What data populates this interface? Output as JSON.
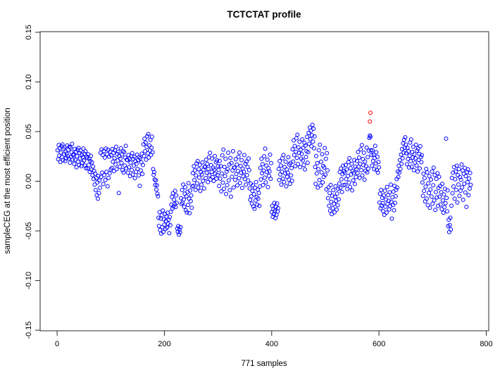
{
  "title": "TCTCTAT profile",
  "x_axis": {
    "label": "771 samples",
    "tick_values": [
      0,
      200,
      400,
      600,
      800
    ],
    "tick_labels": [
      "0",
      "200",
      "400",
      "600",
      "800"
    ]
  },
  "y_axis": {
    "label": "sampleCEG at the most efficient position",
    "tick_values": [
      0.15,
      0.1,
      0.05,
      0.0,
      -0.05,
      -0.1,
      -0.15
    ],
    "tick_labels": [
      "0.15",
      "0.10",
      "0.05",
      "0.00",
      "-0.05",
      "-0.10",
      "-0.15"
    ]
  },
  "colors": {
    "points": "#0000FF",
    "outliers": "#FF0000",
    "axis": "#2a2a2a",
    "background": "#FFFFFF"
  },
  "chart_data": {
    "type": "scatter",
    "title": "TCTCTAT profile",
    "xlabel": "771 samples",
    "ylabel": "sampleCEG at the most efficient position",
    "xlim": [
      -31.6,
      804.6
    ],
    "ylim": [
      -0.1506,
      0.1506
    ],
    "grid": false,
    "legend": "none",
    "n_samples": 771,
    "marker": "open-circle",
    "series_note": "one sample per x index, x = 1..771",
    "series": [
      {
        "name": "sample profile",
        "color": "#0000FF",
        "x_start": 1,
        "values": [
          0.0312,
          0.0221,
          0.0364,
          0.0258,
          0.0333,
          0.0194,
          0.0289,
          0.0352,
          0.0243,
          0.0371,
          0.0212,
          0.0326,
          0.0269,
          0.0341,
          0.0203,
          0.0297,
          0.0232,
          0.0278,
          0.0359,
          0.0251,
          0.0317,
          0.0228,
          0.0347,
          0.0186,
          0.0338,
          0.0246,
          0.0291,
          0.0376,
          0.0218,
          0.0262,
          0.0273,
          0.0176,
          0.0325,
          0.0217,
          0.0295,
          0.0141,
          0.0251,
          0.0318,
          0.0196,
          0.0336,
          0.0163,
          0.0284,
          0.0229,
          0.0308,
          0.0152,
          0.0266,
          0.0187,
          0.0242,
          0.0329,
          0.0206,
          0.0277,
          0.0158,
          0.0301,
          0.0131,
          0.0249,
          0.0234,
          0.0128,
          0.0271,
          0.0162,
          0.0226,
          0.0094,
          0.0203,
          0.0255,
          0.0117,
          0.0189,
          0.0061,
          0.0148,
          0.0022,
          0.0105,
          -0.0034,
          0.0076,
          -0.0089,
          0.0031,
          -0.0142,
          -0.0012,
          -0.0176,
          0.0054,
          -0.0118,
          0.0008,
          -0.0065,
          0.0286,
          0.0043,
          0.0321,
          0.0087,
          0.0264,
          -0.0028,
          0.0305,
          0.0061,
          0.0238,
          0.0012,
          0.0329,
          0.0095,
          0.0272,
          -0.0051,
          0.0316,
          0.0034,
          0.0247,
          0.0079,
          0.0298,
          0.0118,
          0.0261,
          0.0134,
          0.0324,
          0.0196,
          0.0285,
          0.0102,
          0.0233,
          0.0312,
          0.0168,
          0.0347,
          0.0121,
          0.0276,
          0.0209,
          0.0298,
          -0.0118,
          0.0253,
          0.0146,
          0.0227,
          0.0331,
          0.0184,
          0.0269,
          0.0112,
          0.0304,
          0.0088,
          0.0292,
          0.0157,
          0.0238,
          0.0356,
          0.0129,
          0.0216,
          0.0213,
          0.0086,
          0.0264,
          0.0141,
          0.0229,
          0.0052,
          0.0187,
          0.0251,
          0.0113,
          0.0283,
          0.0067,
          0.0224,
          0.0158,
          0.0246,
          0.0031,
          0.0202,
          0.0095,
          0.0176,
          0.0268,
          0.0124,
          0.0215,
          0.0058,
          0.0243,
          -0.0047,
          0.0231,
          0.0108,
          0.0189,
          0.0277,
          0.0073,
          0.0164,
          0.0372,
          0.0254,
          0.0428,
          0.0301,
          0.0389,
          0.0217,
          0.0346,
          0.0453,
          0.0282,
          0.0475,
          0.0238,
          0.0361,
          0.0309,
          0.0417,
          0.0264,
          0.0338,
          0.0448,
          0.0291,
          0.0121,
          0.0064,
          0.0092,
          0.0017,
          -0.0038,
          0.0009,
          -0.0084,
          -0.0041,
          -0.0126,
          -0.0152,
          -0.0368,
          -0.0451,
          -0.0312,
          -0.0492,
          -0.0376,
          -0.0527,
          -0.0341,
          -0.0463,
          -0.0295,
          -0.0512,
          -0.0384,
          -0.0437,
          -0.0329,
          -0.0481,
          -0.0402,
          -0.0356,
          -0.0468,
          -0.0317,
          -0.0429,
          -0.0387,
          -0.0524,
          -0.0361,
          -0.0443,
          -0.0308,
          -0.0236,
          -0.0158,
          -0.0274,
          -0.0121,
          -0.0253,
          -0.0186,
          -0.0229,
          -0.0097,
          -0.0261,
          -0.0143,
          -0.0218,
          -0.0476,
          -0.0509,
          -0.0452,
          -0.0538,
          -0.0487,
          -0.0515,
          -0.0463,
          -0.0172,
          -0.0228,
          -0.0088,
          -0.0216,
          -0.0034,
          -0.0184,
          -0.0257,
          -0.0126,
          -0.0061,
          -0.0293,
          -0.0152,
          -0.0315,
          -0.0107,
          -0.0238,
          -0.0019,
          -0.0176,
          -0.0322,
          -0.0094,
          -0.0201,
          -0.0143,
          -0.0267,
          -0.0052,
          0.0082,
          -0.0046,
          0.0151,
          0.0013,
          0.0109,
          -0.0087,
          0.0058,
          0.0178,
          -0.0021,
          0.0203,
          -0.0064,
          0.0121,
          0.0037,
          0.0164,
          -0.0098,
          0.0091,
          -0.0035,
          0.0068,
          0.0189,
          0.0004,
          0.0116,
          -0.0072,
          0.0143,
          0.0148,
          0.0032,
          0.0217,
          0.0086,
          0.0174,
          -0.0009,
          0.0123,
          0.0241,
          0.0058,
          0.0286,
          0.0017,
          0.0162,
          0.0094,
          0.0228,
          0.0041,
          0.0137,
          0.0003,
          0.0118,
          0.0254,
          0.0076,
          0.0191,
          0.0025,
          0.0209,
          0.0063,
          0.0152,
          0.0114,
          -0.0048,
          0.0205,
          0.0026,
          0.0152,
          -0.0102,
          0.0078,
          0.0261,
          -0.0014,
          0.0318,
          -0.0076,
          0.0143,
          0.0052,
          0.0226,
          -0.0128,
          0.0097,
          -0.0039,
          0.0121,
          0.0287,
          0.0008,
          0.0169,
          -0.0091,
          0.0234,
          -0.0156,
          0.0183,
          0.0044,
          0.0109,
          0.0302,
          -0.0063,
          0.0137,
          0.0138,
          0.0014,
          0.0221,
          0.0072,
          0.0167,
          -0.0042,
          0.0103,
          0.0246,
          0.0031,
          0.0289,
          -0.0018,
          0.0154,
          0.0086,
          0.0212,
          -0.0067,
          0.0127,
          0.0049,
          0.0095,
          0.0263,
          0.0021,
          0.0176,
          -0.0035,
          0.0198,
          0.0061,
          0.0143,
          0.0007,
          0.0229,
          0.0112,
          -0.0073,
          -0.0187,
          -0.0024,
          -0.0152,
          -0.0226,
          -0.0098,
          -0.0041,
          -0.0253,
          -0.0131,
          -0.0278,
          -0.0066,
          -0.0194,
          -0.0009,
          -0.0162,
          -0.0237,
          -0.0084,
          -0.0176,
          -0.0118,
          -0.0248,
          -0.0053,
          0.0134,
          0.0018,
          0.0226,
          0.0081,
          0.0172,
          -0.0039,
          0.0107,
          0.0251,
          0.0036,
          0.0328,
          -0.0012,
          0.0158,
          0.0092,
          0.0217,
          -0.0058,
          0.0131,
          0.0053,
          0.0099,
          0.0268,
          0.0024,
          0.0183,
          -0.0312,
          -0.0247,
          -0.0358,
          -0.0283,
          -0.0331,
          -0.0219,
          -0.0296,
          -0.0372,
          -0.0258,
          -0.0339,
          -0.0224,
          -0.0305,
          -0.0271,
          0.0124,
          0.0012,
          0.0203,
          0.0068,
          0.0157,
          -0.0034,
          0.0096,
          0.0231,
          0.0027,
          0.0264,
          -0.0008,
          0.0142,
          0.0079,
          0.0196,
          -0.0051,
          0.0118,
          0.0043,
          0.0087,
          0.0242,
          0.0016,
          0.0169,
          -0.0027,
          0.0184,
          0.0058,
          0.0133,
          0.0004,
          0.0322,
          0.0198,
          0.0411,
          0.0263,
          0.0354,
          0.0151,
          0.0297,
          0.0432,
          0.0236,
          0.0468,
          0.0173,
          0.0341,
          0.0284,
          0.0397,
          0.0142,
          0.0318,
          0.0227,
          0.0276,
          0.0422,
          0.0209,
          0.0337,
          0.0164,
          0.0386,
          0.0118,
          0.0359,
          0.0244,
          0.0302,
          0.0447,
          0.0187,
          0.0293,
          0.0487,
          0.0376,
          0.0541,
          0.0423,
          0.0509,
          0.0352,
          0.0462,
          0.0568,
          0.0398,
          0.0528,
          0.0331,
          0.0451,
          0.0143,
          -0.0027,
          0.0254,
          0.0078,
          0.0182,
          -0.0064,
          0.0121,
          0.0312,
          0.0012,
          0.0368,
          -0.0043,
          0.0197,
          0.0089,
          0.0271,
          -0.0011,
          0.0154,
          0.0044,
          0.0138,
          0.0334,
          0.0066,
          0.0226,
          -0.0082,
          0.0283,
          0.0109,
          -0.0171,
          -0.0062,
          -0.0248,
          -0.0119,
          -0.0296,
          -0.0038,
          -0.0207,
          -0.0331,
          -0.0146,
          -0.0273,
          -0.0091,
          -0.0229,
          -0.0314,
          -0.0158,
          -0.0052,
          -0.0197,
          -0.0286,
          -0.0124,
          -0.0241,
          -0.0076,
          -0.0183,
          -0.0024,
          0.0093,
          -0.0067,
          0.0128,
          0.0019,
          -0.0108,
          0.0071,
          0.0156,
          -0.0039,
          0.0104,
          0.0087,
          -0.0036,
          0.0164,
          0.0021,
          0.0118,
          -0.0079,
          0.0053,
          0.0192,
          -0.0014,
          0.0231,
          -0.0058,
          0.0131,
          0.0068,
          0.0176,
          -0.0092,
          0.0102,
          0.0009,
          0.0084,
          0.0213,
          -0.0028,
          0.0146,
          0.0042,
          0.0121,
          0.0203,
          0.0081,
          0.0294,
          0.0147,
          0.0238,
          0.0034,
          0.0176,
          0.0321,
          0.0112,
          0.0364,
          0.0058,
          0.0224,
          0.0163,
          0.0287,
          0.0016,
          0.0198,
          0.0104,
          0.0152,
          0.0339,
          0.0089,
          0.0243,
          0.0127,
          0.0308,
          0.0436,
          0.046,
          0.0448,
          0.0312,
          0.0265,
          0.0158,
          0.0312,
          0.0204,
          0.0267,
          0.0121,
          0.0232,
          0.0356,
          0.0178,
          0.0291,
          0.0113,
          0.0246,
          0.0087,
          0.0194,
          0.0139,
          -0.0214,
          -0.0126,
          -0.0273,
          -0.0088,
          -0.0246,
          -0.0167,
          -0.0221,
          -0.0302,
          -0.0143,
          -0.0338,
          -0.0096,
          -0.0257,
          -0.0184,
          -0.0316,
          -0.0059,
          -0.0228,
          -0.0139,
          -0.0198,
          -0.0284,
          -0.0112,
          -0.0251,
          -0.0033,
          -0.0207,
          -0.0376,
          -0.0161,
          -0.0239,
          -0.0104,
          -0.0293,
          -0.0047,
          -0.0218,
          -0.0152,
          -0.0086,
          0.0021,
          -0.0064,
          0.0098,
          0.0042,
          0.0156,
          0.0087,
          0.0213,
          0.0124,
          0.0268,
          0.0176,
          0.0324,
          0.0231,
          0.0381,
          0.0287,
          0.0418,
          0.0336,
          0.0442,
          0.0369,
          0.0283,
          0.0171,
          0.0336,
          0.0224,
          0.0301,
          0.0138,
          0.0257,
          0.0389,
          0.0203,
          0.0421,
          0.0146,
          0.0294,
          0.0238,
          0.0347,
          0.0112,
          0.0272,
          0.0186,
          0.0231,
          0.0368,
          0.0159,
          0.0308,
          0.0097,
          0.0329,
          0.0214,
          0.0276,
          0.0128,
          0.0352,
          0.0243,
          0.0191,
          0.0262,
          -0.0012,
          -0.0147,
          0.0076,
          -0.0098,
          0.0031,
          -0.0203,
          -0.0054,
          0.0124,
          -0.0176,
          0.0089,
          -0.0241,
          -0.0021,
          -0.0118,
          0.0052,
          -0.0267,
          -0.0083,
          0.0017,
          -0.0154,
          0.0098,
          -0.0226,
          -0.0041,
          0.0136,
          -0.0192,
          0.0063,
          -0.0289,
          -0.0109,
          0.0024,
          -0.0163,
          0.0081,
          -0.0248,
          -0.0067,
          0.0043,
          -0.0156,
          -0.0048,
          -0.0234,
          -0.0112,
          -0.0281,
          -0.0027,
          -0.0193,
          -0.0318,
          -0.0134,
          -0.0262,
          -0.0076,
          -0.0221,
          0.0429,
          -0.0168,
          -0.0304,
          -0.0092,
          -0.0453,
          -0.0387,
          -0.0512,
          -0.0441,
          -0.0368,
          -0.0486,
          -0.0247,
          0.0034,
          -0.0121,
          0.0087,
          -0.0053,
          0.0142,
          -0.0176,
          0.0019,
          0.0098,
          -0.0087,
          0.0156,
          -0.0214,
          0.0061,
          -0.0034,
          0.0123,
          -0.0148,
          0.0042,
          -0.0096,
          0.0014,
          0.0168,
          -0.0062,
          0.0109,
          -0.0187,
          0.0076,
          -0.0027,
          0.0134,
          -0.0113,
          0.0051,
          -0.0258,
          0.0092,
          -0.0009,
          0.0118,
          -0.0141,
          0.0027,
          -0.0074,
          0.0083,
          -0.0036
        ]
      },
      {
        "name": "highlighted outliers",
        "color": "#FF0000",
        "points": [
          [
            583,
            0.0601
          ],
          [
            584,
            0.0689
          ]
        ]
      }
    ]
  }
}
